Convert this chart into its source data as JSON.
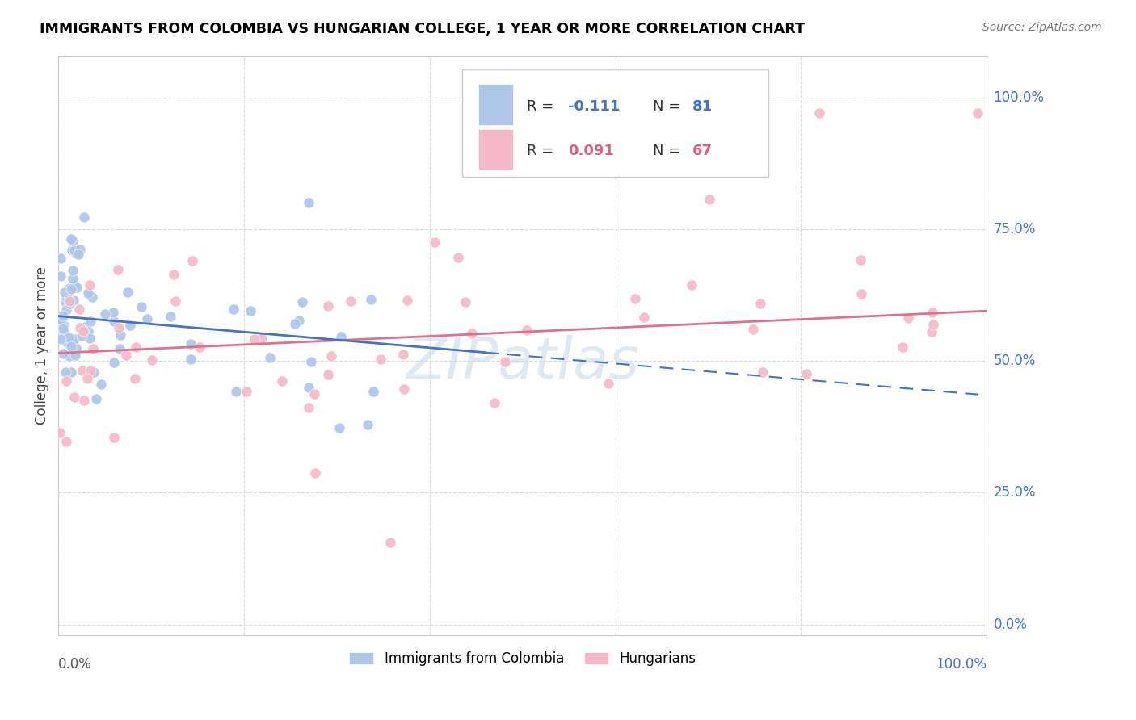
{
  "title": "IMMIGRANTS FROM COLOMBIA VS HUNGARIAN COLLEGE, 1 YEAR OR MORE CORRELATION CHART",
  "source": "Source: ZipAtlas.com",
  "ylabel": "College, 1 year or more",
  "ytick_vals": [
    0.0,
    0.25,
    0.5,
    0.75,
    1.0
  ],
  "ytick_labels": [
    "0.0%",
    "25.0%",
    "50.0%",
    "75.0%",
    "100.0%"
  ],
  "xtick_labels_left": "0.0%",
  "xtick_labels_right": "100.0%",
  "color_blue": "#aec6e8",
  "color_pink": "#f5b8c8",
  "color_blue_text": "#4472c4",
  "color_pink_text": "#d95f7f",
  "line_blue": "#4472c4",
  "line_pink": "#e07090",
  "background": "#ffffff",
  "grid_color": "#d8d8d8",
  "watermark": "ZIPatlas",
  "legend_label1": "Immigrants from Colombia",
  "legend_label2": "Hungarians",
  "r1": "-0.111",
  "n1": "81",
  "r2": "0.091",
  "n2": "67",
  "blue_line_x0": 0.0,
  "blue_line_y0": 0.585,
  "blue_line_x1": 1.0,
  "blue_line_y1": 0.435,
  "pink_line_x0": 0.0,
  "pink_line_y0": 0.515,
  "pink_line_x1": 1.0,
  "pink_line_y1": 0.595,
  "xlim": [
    0.0,
    1.0
  ],
  "ylim": [
    -0.02,
    1.08
  ]
}
